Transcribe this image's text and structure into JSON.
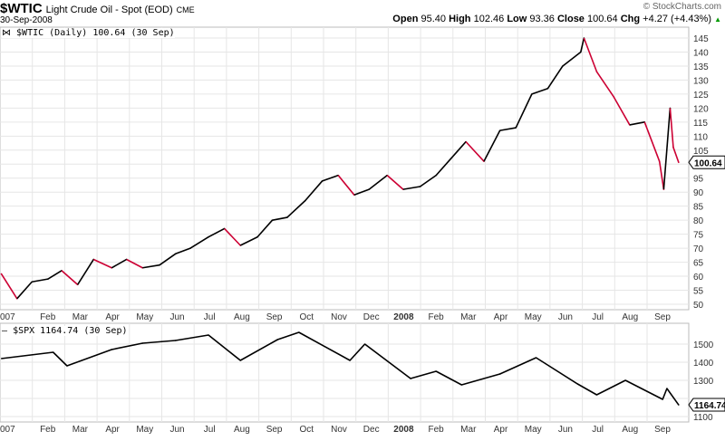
{
  "header": {
    "symbol": "$WTIC",
    "name": "Light Crude Oil - Spot (EOD)",
    "exchange": "CME",
    "date": "30-Sep-2008",
    "watermark": "© StockCharts.com",
    "open_label": "Open",
    "open": "95.40",
    "high_label": "High",
    "high": "102.46",
    "low_label": "Low",
    "low": "93.36",
    "close_label": "Close",
    "close": "100.64",
    "chg_label": "Chg",
    "chg": "+4.27 (+4.43%)"
  },
  "chart_data": [
    {
      "type": "line",
      "title": "$WTIC (Daily) 100.64 (30 Sep)",
      "last_value_label": "100.64",
      "up_color": "#000000",
      "down_color": "#cc0033",
      "ylim": [
        48,
        148
      ],
      "yticks": [
        50,
        55,
        60,
        65,
        70,
        75,
        80,
        85,
        90,
        95,
        100,
        105,
        110,
        115,
        120,
        125,
        130,
        135,
        140,
        145
      ],
      "xticks": [
        "007",
        "Feb",
        "Mar",
        "Apr",
        "May",
        "Jun",
        "Jul",
        "Aug",
        "Sep",
        "Oct",
        "Nov",
        "Dec",
        "2008",
        "Feb",
        "Mar",
        "Apr",
        "May",
        "Jun",
        "Jul",
        "Aug",
        "Sep"
      ],
      "grid": true,
      "x": [
        "2007-01-02",
        "2007-01-17",
        "2007-01-31",
        "2007-02-15",
        "2007-02-28",
        "2007-03-15",
        "2007-03-30",
        "2007-04-16",
        "2007-04-30",
        "2007-05-15",
        "2007-05-31",
        "2007-06-15",
        "2007-06-29",
        "2007-07-16",
        "2007-07-31",
        "2007-08-15",
        "2007-08-31",
        "2007-09-14",
        "2007-09-28",
        "2007-10-15",
        "2007-10-31",
        "2007-11-15",
        "2007-11-30",
        "2007-12-14",
        "2007-12-31",
        "2008-01-15",
        "2008-01-31",
        "2008-02-15",
        "2008-02-29",
        "2008-03-14",
        "2008-03-31",
        "2008-04-15",
        "2008-04-30",
        "2008-05-15",
        "2008-05-30",
        "2008-06-13",
        "2008-06-30",
        "2008-07-03",
        "2008-07-15",
        "2008-07-31",
        "2008-08-15",
        "2008-08-29",
        "2008-09-12",
        "2008-09-16",
        "2008-09-22",
        "2008-09-25",
        "2008-09-30"
      ],
      "values": [
        61,
        52,
        58,
        59,
        62,
        57,
        66,
        63,
        66,
        63,
        64,
        68,
        70,
        74,
        77,
        71,
        74,
        80,
        81,
        87,
        94,
        96,
        89,
        91,
        96,
        91,
        92,
        96,
        102,
        108,
        101,
        112,
        113,
        125,
        127,
        135,
        140,
        145,
        133,
        124,
        114,
        115,
        101,
        91,
        120,
        106,
        100.64
      ]
    },
    {
      "type": "line",
      "title": "$SPX 1164.74 (30 Sep)",
      "last_value_label": "1164.74",
      "ylim": [
        1080,
        1600
      ],
      "yticks": [
        1100,
        1200,
        1300,
        1400,
        1500
      ],
      "xticks": [
        "007",
        "Feb",
        "Mar",
        "Apr",
        "May",
        "Jun",
        "Jul",
        "Aug",
        "Sep",
        "Oct",
        "Nov",
        "Dec",
        "2008",
        "Feb",
        "Mar",
        "Apr",
        "May",
        "Jun",
        "Jul",
        "Aug",
        "Sep"
      ],
      "grid": true,
      "x": [
        "2007-01-02",
        "2007-02-20",
        "2007-03-05",
        "2007-04-16",
        "2007-05-15",
        "2007-06-15",
        "2007-07-16",
        "2007-08-15",
        "2007-09-19",
        "2007-10-09",
        "2007-11-26",
        "2007-12-10",
        "2008-01-22",
        "2008-02-15",
        "2008-03-10",
        "2008-04-15",
        "2008-05-19",
        "2008-06-27",
        "2008-07-15",
        "2008-08-11",
        "2008-09-15",
        "2008-09-19",
        "2008-09-30"
      ],
      "values": [
        1420,
        1455,
        1380,
        1470,
        1505,
        1520,
        1550,
        1410,
        1525,
        1565,
        1410,
        1500,
        1310,
        1350,
        1275,
        1335,
        1425,
        1280,
        1220,
        1300,
        1195,
        1255,
        1164.74
      ]
    }
  ]
}
